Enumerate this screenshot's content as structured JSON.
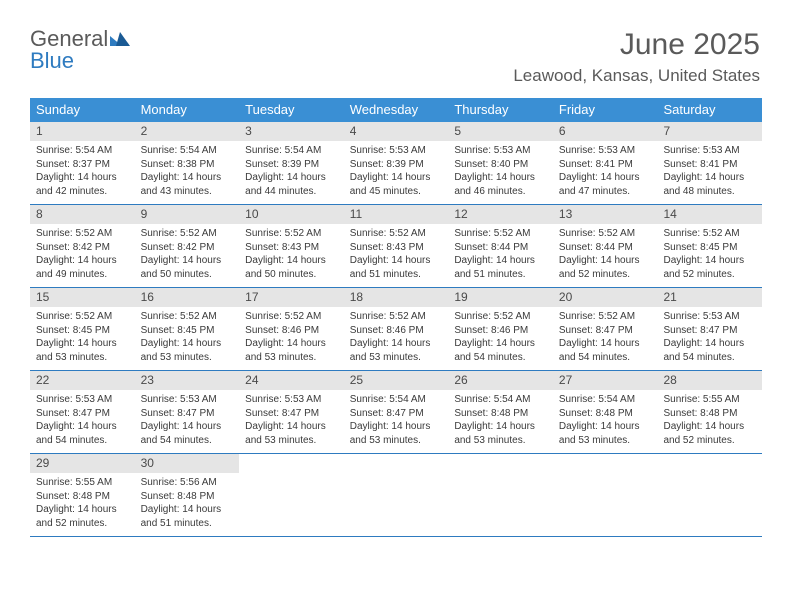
{
  "logo": {
    "line1": "General",
    "line2": "Blue"
  },
  "title": "June 2025",
  "location": "Leawood, Kansas, United States",
  "colors": {
    "header_bg": "#3a8fd4",
    "header_text": "#ffffff",
    "daynum_bg": "#e5e5e5",
    "text": "#3a3a3a",
    "rule": "#2e7bc0",
    "logo_gray": "#5a5a5a",
    "logo_blue": "#2e7bc0",
    "bg": "#ffffff"
  },
  "dayNames": [
    "Sunday",
    "Monday",
    "Tuesday",
    "Wednesday",
    "Thursday",
    "Friday",
    "Saturday"
  ],
  "days": [
    {
      "n": 1,
      "sr": "5:54 AM",
      "ss": "8:37 PM",
      "dl": "14 hours and 42 minutes."
    },
    {
      "n": 2,
      "sr": "5:54 AM",
      "ss": "8:38 PM",
      "dl": "14 hours and 43 minutes."
    },
    {
      "n": 3,
      "sr": "5:54 AM",
      "ss": "8:39 PM",
      "dl": "14 hours and 44 minutes."
    },
    {
      "n": 4,
      "sr": "5:53 AM",
      "ss": "8:39 PM",
      "dl": "14 hours and 45 minutes."
    },
    {
      "n": 5,
      "sr": "5:53 AM",
      "ss": "8:40 PM",
      "dl": "14 hours and 46 minutes."
    },
    {
      "n": 6,
      "sr": "5:53 AM",
      "ss": "8:41 PM",
      "dl": "14 hours and 47 minutes."
    },
    {
      "n": 7,
      "sr": "5:53 AM",
      "ss": "8:41 PM",
      "dl": "14 hours and 48 minutes."
    },
    {
      "n": 8,
      "sr": "5:52 AM",
      "ss": "8:42 PM",
      "dl": "14 hours and 49 minutes."
    },
    {
      "n": 9,
      "sr": "5:52 AM",
      "ss": "8:42 PM",
      "dl": "14 hours and 50 minutes."
    },
    {
      "n": 10,
      "sr": "5:52 AM",
      "ss": "8:43 PM",
      "dl": "14 hours and 50 minutes."
    },
    {
      "n": 11,
      "sr": "5:52 AM",
      "ss": "8:43 PM",
      "dl": "14 hours and 51 minutes."
    },
    {
      "n": 12,
      "sr": "5:52 AM",
      "ss": "8:44 PM",
      "dl": "14 hours and 51 minutes."
    },
    {
      "n": 13,
      "sr": "5:52 AM",
      "ss": "8:44 PM",
      "dl": "14 hours and 52 minutes."
    },
    {
      "n": 14,
      "sr": "5:52 AM",
      "ss": "8:45 PM",
      "dl": "14 hours and 52 minutes."
    },
    {
      "n": 15,
      "sr": "5:52 AM",
      "ss": "8:45 PM",
      "dl": "14 hours and 53 minutes."
    },
    {
      "n": 16,
      "sr": "5:52 AM",
      "ss": "8:45 PM",
      "dl": "14 hours and 53 minutes."
    },
    {
      "n": 17,
      "sr": "5:52 AM",
      "ss": "8:46 PM",
      "dl": "14 hours and 53 minutes."
    },
    {
      "n": 18,
      "sr": "5:52 AM",
      "ss": "8:46 PM",
      "dl": "14 hours and 53 minutes."
    },
    {
      "n": 19,
      "sr": "5:52 AM",
      "ss": "8:46 PM",
      "dl": "14 hours and 54 minutes."
    },
    {
      "n": 20,
      "sr": "5:52 AM",
      "ss": "8:47 PM",
      "dl": "14 hours and 54 minutes."
    },
    {
      "n": 21,
      "sr": "5:53 AM",
      "ss": "8:47 PM",
      "dl": "14 hours and 54 minutes."
    },
    {
      "n": 22,
      "sr": "5:53 AM",
      "ss": "8:47 PM",
      "dl": "14 hours and 54 minutes."
    },
    {
      "n": 23,
      "sr": "5:53 AM",
      "ss": "8:47 PM",
      "dl": "14 hours and 54 minutes."
    },
    {
      "n": 24,
      "sr": "5:53 AM",
      "ss": "8:47 PM",
      "dl": "14 hours and 53 minutes."
    },
    {
      "n": 25,
      "sr": "5:54 AM",
      "ss": "8:47 PM",
      "dl": "14 hours and 53 minutes."
    },
    {
      "n": 26,
      "sr": "5:54 AM",
      "ss": "8:48 PM",
      "dl": "14 hours and 53 minutes."
    },
    {
      "n": 27,
      "sr": "5:54 AM",
      "ss": "8:48 PM",
      "dl": "14 hours and 53 minutes."
    },
    {
      "n": 28,
      "sr": "5:55 AM",
      "ss": "8:48 PM",
      "dl": "14 hours and 52 minutes."
    },
    {
      "n": 29,
      "sr": "5:55 AM",
      "ss": "8:48 PM",
      "dl": "14 hours and 52 minutes."
    },
    {
      "n": 30,
      "sr": "5:56 AM",
      "ss": "8:48 PM",
      "dl": "14 hours and 51 minutes."
    }
  ],
  "labels": {
    "sunrise": "Sunrise:",
    "sunset": "Sunset:",
    "daylight": "Daylight:"
  },
  "layout": {
    "columns": 7,
    "first_day_col": 0
  }
}
